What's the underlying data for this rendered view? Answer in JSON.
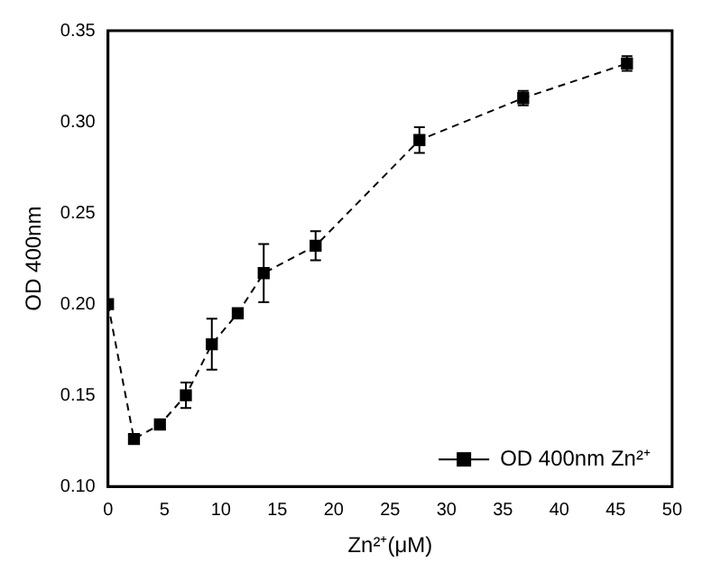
{
  "chart_data": {
    "type": "line",
    "xlabel": "Zn²⁺(μM)",
    "ylabel": "OD 400nm",
    "x": [
      0,
      2.3,
      4.6,
      6.9,
      9.2,
      11.5,
      13.8,
      18.4,
      27.6,
      36.8,
      46
    ],
    "series": [
      {
        "name": "OD 400nm Zn²⁺",
        "color": "#000000",
        "values": [
          0.2,
          0.126,
          0.134,
          0.15,
          0.178,
          0.195,
          0.217,
          0.232,
          0.29,
          0.313,
          0.332
        ],
        "errors": [
          null,
          null,
          null,
          0.007,
          0.014,
          null,
          0.016,
          0.008,
          0.007,
          0.004,
          0.004
        ]
      }
    ],
    "xlim": [
      0,
      50
    ],
    "xticks": [
      0,
      5,
      10,
      15,
      20,
      25,
      30,
      35,
      40,
      45,
      50
    ],
    "ylim": [
      0.1,
      0.35
    ],
    "yticks": [
      {
        "value": 0.1,
        "label": "0.10"
      },
      {
        "value": 0.15,
        "label": "0.15"
      },
      {
        "value": 0.2,
        "label": "0.20"
      },
      {
        "value": 0.25,
        "label": "0.25"
      },
      {
        "value": 0.3,
        "label": "0.30"
      },
      {
        "value": 0.35,
        "label": "0.35"
      }
    ],
    "grid": false,
    "legend": "bottom right",
    "marker": "square",
    "line_style": "dashed"
  }
}
